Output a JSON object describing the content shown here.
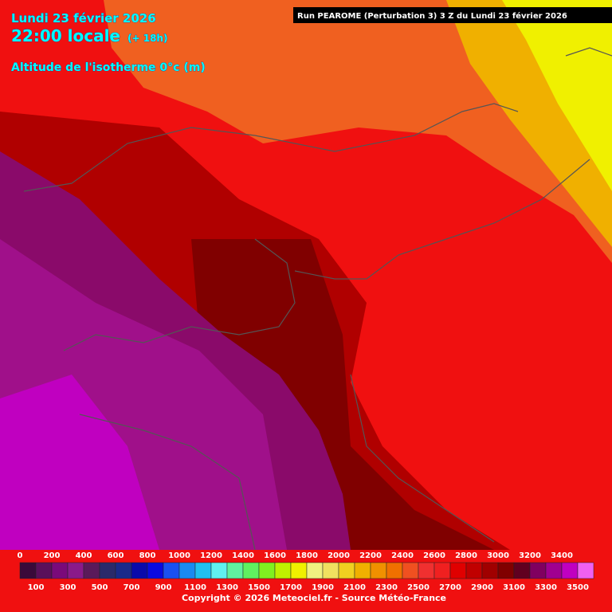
{
  "header": {
    "date": "Lundi 23 février 2026",
    "time": "22:00 locale",
    "lead": "(+ 18h)",
    "parameter": "Altitude de l'isotherme 0°c (m)",
    "run": "Run PEAROME (Perturbation 3) 3 Z du Lundi 23 février 2026"
  },
  "legend": {
    "ticks": [
      0,
      100,
      200,
      300,
      400,
      500,
      600,
      700,
      800,
      900,
      1000,
      1100,
      1200,
      1300,
      1400,
      1500,
      1600,
      1700,
      1800,
      1900,
      2000,
      2100,
      2200,
      2300,
      2400,
      2500,
      2600,
      2700,
      2800,
      2900,
      3000,
      3100,
      3200,
      3300,
      3400,
      3500
    ],
    "colors": [
      "#3a0a3a",
      "#5a105a",
      "#7a0a7a",
      "#8a1a8a",
      "#5a1a5a",
      "#2a2a6a",
      "#1a2a8a",
      "#0a0aaa",
      "#0a0ae0",
      "#1a50f0",
      "#1a8af0",
      "#20c0f0",
      "#60f0f0",
      "#60f0a0",
      "#60f060",
      "#80f020",
      "#c0f000",
      "#f0f000",
      "#f0f080",
      "#f0e060",
      "#f0d020",
      "#f0b000",
      "#f09000",
      "#f07000",
      "#f05020",
      "#f03030",
      "#f02020",
      "#e00000",
      "#c00000",
      "#a00000",
      "#800000",
      "#600020",
      "#800060",
      "#a00090",
      "#c000c0",
      "#f060f0"
    ]
  },
  "footer": "Copyright © 2026 Meteociel.fr - Source Météo-France"
}
